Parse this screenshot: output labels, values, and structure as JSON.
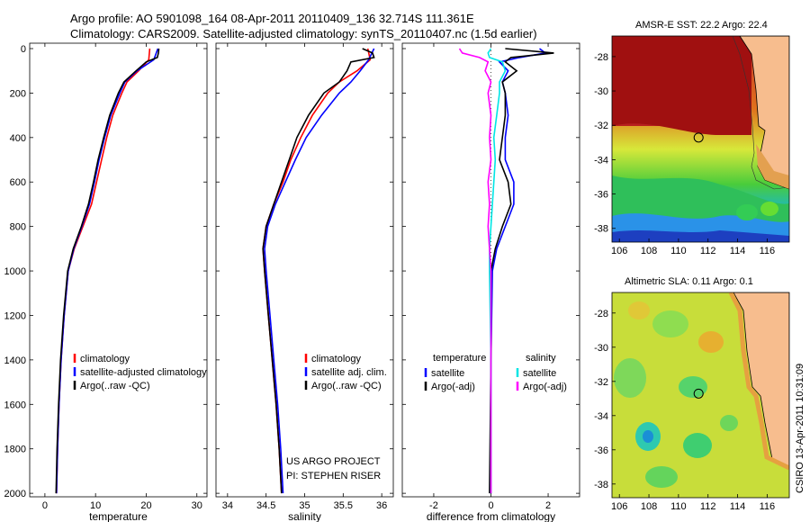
{
  "header": {
    "line1": "Argo profile: AO 5901098_164 08-Apr-2011 20110409_136 32.714S 111.361E",
    "line2": "Climatology: CARS2009. Satellite-adjusted climatology: synTS_20110407.nc (1.5d earlier)"
  },
  "colors": {
    "climatology": "#ff0000",
    "satellite": "#0000ff",
    "argo": "#000000",
    "sat_salinity": "#00e5e5",
    "argo_salinity_diff": "#ff00ff"
  },
  "project_note": {
    "line1": "US ARGO PROJECT",
    "line2": "PI: STEPHEN RISER"
  },
  "timestamp": "CSIRO 13-Apr-2011 10:31:09",
  "maps": [
    {
      "title": "AMSR-E SST: 22.2  Argo: 22.4",
      "variable": "sst"
    },
    {
      "title": "Altimetric SLA: 0.11  Argo: 0.1",
      "variable": "sla"
    }
  ],
  "map_axes": {
    "xticks": [
      "106",
      "108",
      "110",
      "112",
      "114",
      "116"
    ],
    "yticks": [
      "-28",
      "-30",
      "-32",
      "-34",
      "-36",
      "-38"
    ],
    "xlim": [
      105.5,
      117.5
    ],
    "ylim": [
      -38.8,
      -26.8
    ],
    "float_position": {
      "lon": 111.361,
      "lat": -32.714
    }
  },
  "chart_data": [
    {
      "type": "line",
      "xlabel": "temperature",
      "xticks": [
        "0",
        "10",
        "20",
        "30"
      ],
      "xlim": [
        -3,
        32
      ],
      "yticks": [
        "0",
        "200",
        "400",
        "600",
        "800",
        "1000",
        "1200",
        "1400",
        "1600",
        "1800",
        "2000"
      ],
      "ylim": [
        2040,
        0
      ],
      "legend": [
        "climatology",
        "satellite-adjusted climatology",
        "Argo(..raw -QC)"
      ],
      "series": [
        {
          "name": "climatology",
          "depth": [
            0,
            50,
            100,
            150,
            200,
            300,
            400,
            500,
            600,
            700,
            800,
            900,
            1000,
            1200,
            1400,
            1600,
            1800,
            2000
          ],
          "values": [
            20.7,
            20.5,
            18.5,
            16.2,
            15.2,
            13.4,
            12.2,
            11.2,
            10.2,
            9.2,
            7.5,
            5.8,
            4.6,
            3.8,
            3.2,
            2.8,
            2.5,
            2.3
          ]
        },
        {
          "name": "satellite-adjusted climatology",
          "depth": [
            0,
            50,
            100,
            150,
            200,
            300,
            400,
            500,
            600,
            700,
            800,
            900,
            1000,
            1200,
            1400,
            1600,
            1800,
            2000
          ],
          "values": [
            22.3,
            21.5,
            18.2,
            15.8,
            14.8,
            13.0,
            11.8,
            10.7,
            9.8,
            8.8,
            7.3,
            5.7,
            4.6,
            3.8,
            3.2,
            2.8,
            2.5,
            2.3
          ]
        },
        {
          "name": "Argo(..raw -QC)",
          "depth": [
            0,
            20,
            40,
            60,
            100,
            150,
            200,
            300,
            400,
            500,
            600,
            700,
            800,
            900,
            1000,
            1200,
            1400,
            1600,
            1800,
            2000
          ],
          "values": [
            22.5,
            22.4,
            22.2,
            20.0,
            18.0,
            15.6,
            14.5,
            12.8,
            11.6,
            10.5,
            9.6,
            8.6,
            7.2,
            5.6,
            4.5,
            3.7,
            3.1,
            2.7,
            2.4,
            2.2
          ]
        }
      ]
    },
    {
      "type": "line",
      "xlabel": "salinity",
      "xticks": [
        "34",
        "34.5",
        "35",
        "35.5",
        "36"
      ],
      "xlim": [
        33.85,
        36.15
      ],
      "ylim": [
        2040,
        0
      ],
      "legend": [
        "climatology",
        "satellite adj. clim.",
        "Argo(..raw -QC)"
      ],
      "series": [
        {
          "name": "climatology",
          "depth": [
            0,
            50,
            100,
            150,
            200,
            300,
            400,
            500,
            600,
            700,
            800,
            900,
            1000,
            1200,
            1400,
            1600,
            1800,
            2000
          ],
          "values": [
            35.82,
            35.85,
            35.68,
            35.45,
            35.3,
            35.1,
            34.95,
            34.82,
            34.72,
            34.6,
            34.5,
            34.46,
            34.48,
            34.53,
            34.58,
            34.63,
            34.67,
            34.7
          ]
        },
        {
          "name": "satellite adj. clim.",
          "depth": [
            0,
            50,
            100,
            150,
            200,
            300,
            400,
            500,
            600,
            700,
            800,
            900,
            1000,
            1200,
            1400,
            1600,
            1800,
            2000
          ],
          "values": [
            35.9,
            35.83,
            35.72,
            35.6,
            35.45,
            35.22,
            35.02,
            34.88,
            34.75,
            34.62,
            34.52,
            34.48,
            34.5,
            34.55,
            34.6,
            34.65,
            34.69,
            34.72
          ]
        },
        {
          "name": "Argo(..raw -QC)",
          "depth": [
            0,
            20,
            40,
            60,
            100,
            150,
            200,
            300,
            400,
            500,
            600,
            700,
            800,
            900,
            1000,
            1200,
            1400,
            1600,
            1800,
            2000
          ],
          "values": [
            35.75,
            35.88,
            35.9,
            35.6,
            35.55,
            35.45,
            35.25,
            35.05,
            34.9,
            34.8,
            34.7,
            34.6,
            34.5,
            34.46,
            34.48,
            34.53,
            34.58,
            34.63,
            34.67,
            34.7
          ]
        }
      ]
    },
    {
      "type": "line",
      "xlabel": "difference from climatology",
      "xticks": [
        "-2",
        "0",
        "2"
      ],
      "xlim": [
        -3.1,
        3.1
      ],
      "ylim": [
        2040,
        0
      ],
      "legend_left_title": "temperature",
      "legend_right_title": "salinity",
      "legend": [
        "satellite",
        "Argo(-adj)",
        "satellite",
        "Argo(-adj)"
      ],
      "series": [
        {
          "name": "temperature satellite",
          "depth": [
            0,
            20,
            40,
            60,
            100,
            150,
            200,
            300,
            400,
            500,
            600,
            700,
            800,
            900,
            1000,
            1400,
            2000
          ],
          "values": [
            1.7,
            1.9,
            1.0,
            0.3,
            0.6,
            0.4,
            0.5,
            0.6,
            0.5,
            0.5,
            0.8,
            0.8,
            0.5,
            0.2,
            0.05,
            0.0,
            0.0
          ]
        },
        {
          "name": "temperature Argo(-adj)",
          "depth": [
            0,
            20,
            40,
            60,
            100,
            150,
            200,
            300,
            400,
            500,
            600,
            700,
            800,
            900,
            1000,
            1400,
            2000
          ],
          "values": [
            0.5,
            2.2,
            0.7,
            0.5,
            0.9,
            0.4,
            0.5,
            0.5,
            0.4,
            0.3,
            0.6,
            0.7,
            0.4,
            0.15,
            0.0,
            0.0,
            -0.05
          ]
        },
        {
          "name": "salinity satellite",
          "depth": [
            0,
            20,
            40,
            60,
            100,
            150,
            200,
            300,
            400,
            500,
            600,
            700,
            800,
            900,
            1000,
            1400,
            2000
          ],
          "values": [
            0.0,
            -0.1,
            -0.05,
            0.4,
            0.5,
            0.3,
            0.3,
            0.2,
            0.1,
            0.15,
            0.1,
            0.05,
            0.0,
            -0.05,
            -0.05,
            0.0,
            0.0
          ]
        },
        {
          "name": "salinity Argo(-adj)",
          "depth": [
            0,
            20,
            40,
            60,
            100,
            150,
            200,
            300,
            400,
            500,
            600,
            700,
            800,
            900,
            1000,
            1400,
            2000
          ],
          "values": [
            -1.1,
            -1.0,
            -0.4,
            -0.1,
            -0.2,
            0.0,
            -0.1,
            0.0,
            -0.05,
            0.0,
            -0.1,
            -0.05,
            -0.1,
            -0.05,
            0.0,
            0.0,
            0.0
          ]
        }
      ]
    }
  ]
}
